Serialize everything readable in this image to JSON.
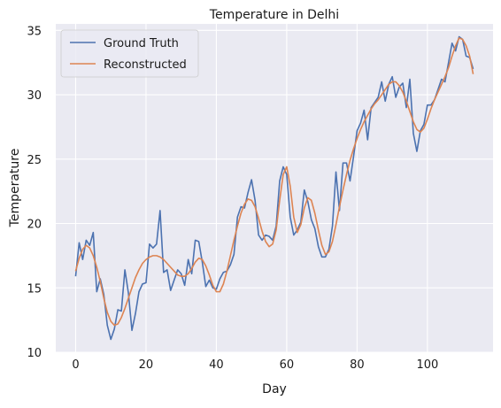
{
  "chart_data": {
    "type": "line",
    "title": "Temperature in Delhi",
    "xlabel": "Day",
    "ylabel": "Temperature",
    "xlim": [
      -5.65,
      118.65
    ],
    "ylim": [
      10,
      35.5
    ],
    "xticks": [
      0,
      20,
      40,
      60,
      80,
      100
    ],
    "yticks": [
      10,
      15,
      20,
      25,
      30,
      35
    ],
    "grid": true,
    "legend_position": "top-left",
    "colors": {
      "ground_truth": "#4c72b0",
      "reconstructed": "#dd8452",
      "background": "#eaeaf2",
      "grid": "#ffffff"
    },
    "series": [
      {
        "name": "Ground Truth",
        "color": "#4c72b0",
        "values": [
          [
            0,
            15.9
          ],
          [
            1,
            18.5
          ],
          [
            2,
            17.2
          ],
          [
            3,
            18.7
          ],
          [
            4,
            18.3
          ],
          [
            5,
            19.3
          ],
          [
            6,
            14.7
          ],
          [
            7,
            15.7
          ],
          [
            8,
            14.5
          ],
          [
            9,
            12.1
          ],
          [
            10,
            11.0
          ],
          [
            11,
            11.8
          ],
          [
            12,
            13.3
          ],
          [
            13,
            13.2
          ],
          [
            14,
            16.4
          ],
          [
            15,
            14.6
          ],
          [
            16,
            11.7
          ],
          [
            17,
            13.0
          ],
          [
            18,
            14.7
          ],
          [
            19,
            15.3
          ],
          [
            20,
            15.4
          ],
          [
            21,
            18.4
          ],
          [
            22,
            18.1
          ],
          [
            23,
            18.4
          ],
          [
            24,
            21.0
          ],
          [
            25,
            16.2
          ],
          [
            26,
            16.4
          ],
          [
            27,
            14.8
          ],
          [
            28,
            15.6
          ],
          [
            29,
            16.4
          ],
          [
            30,
            16.1
          ],
          [
            31,
            15.2
          ],
          [
            32,
            17.2
          ],
          [
            33,
            16.1
          ],
          [
            34,
            18.7
          ],
          [
            35,
            18.6
          ],
          [
            36,
            17.0
          ],
          [
            37,
            15.1
          ],
          [
            38,
            15.6
          ],
          [
            39,
            15.0
          ],
          [
            40,
            14.9
          ],
          [
            41,
            15.7
          ],
          [
            42,
            16.2
          ],
          [
            43,
            16.3
          ],
          [
            44,
            16.8
          ],
          [
            45,
            17.6
          ],
          [
            46,
            20.5
          ],
          [
            47,
            21.3
          ],
          [
            48,
            21.2
          ],
          [
            49,
            22.4
          ],
          [
            50,
            23.4
          ],
          [
            51,
            21.8
          ],
          [
            52,
            19.1
          ],
          [
            53,
            18.7
          ],
          [
            54,
            19.1
          ],
          [
            55,
            19.0
          ],
          [
            56,
            18.7
          ],
          [
            57,
            19.8
          ],
          [
            58,
            23.3
          ],
          [
            59,
            24.4
          ],
          [
            60,
            23.8
          ],
          [
            61,
            20.5
          ],
          [
            62,
            19.1
          ],
          [
            63,
            19.5
          ],
          [
            64,
            20.1
          ],
          [
            65,
            22.6
          ],
          [
            66,
            21.7
          ],
          [
            67,
            20.3
          ],
          [
            68,
            19.6
          ],
          [
            69,
            18.2
          ],
          [
            70,
            17.4
          ],
          [
            71,
            17.4
          ],
          [
            72,
            18.0
          ],
          [
            73,
            19.8
          ],
          [
            74,
            24.0
          ],
          [
            75,
            21.0
          ],
          [
            76,
            24.7
          ],
          [
            77,
            24.7
          ],
          [
            78,
            23.3
          ],
          [
            79,
            25.2
          ],
          [
            80,
            27.2
          ],
          [
            81,
            27.8
          ],
          [
            82,
            28.8
          ],
          [
            83,
            26.5
          ],
          [
            84,
            29.0
          ],
          [
            85,
            29.4
          ],
          [
            86,
            29.8
          ],
          [
            87,
            31.0
          ],
          [
            88,
            29.5
          ],
          [
            89,
            30.8
          ],
          [
            90,
            31.4
          ],
          [
            91,
            29.8
          ],
          [
            92,
            30.6
          ],
          [
            93,
            30.9
          ],
          [
            94,
            29.0
          ],
          [
            95,
            31.2
          ],
          [
            96,
            27.0
          ],
          [
            97,
            25.6
          ],
          [
            98,
            27.2
          ],
          [
            99,
            27.7
          ],
          [
            100,
            29.2
          ],
          [
            101,
            29.2
          ],
          [
            102,
            29.6
          ],
          [
            103,
            30.4
          ],
          [
            104,
            31.2
          ],
          [
            105,
            31.0
          ],
          [
            106,
            32.5
          ],
          [
            107,
            34.0
          ],
          [
            108,
            33.4
          ],
          [
            109,
            34.5
          ],
          [
            110,
            34.3
          ],
          [
            111,
            33.0
          ],
          [
            112,
            32.9
          ],
          [
            113,
            32.0
          ]
        ]
      },
      {
        "name": "Reconstructed",
        "color": "#dd8452",
        "values": [
          [
            0,
            16.3
          ],
          [
            1,
            17.3
          ],
          [
            2,
            18.0
          ],
          [
            3,
            18.3
          ],
          [
            4,
            18.1
          ],
          [
            5,
            17.5
          ],
          [
            6,
            16.6
          ],
          [
            7,
            15.5
          ],
          [
            8,
            14.2
          ],
          [
            9,
            13.1
          ],
          [
            10,
            12.4
          ],
          [
            11,
            12.1
          ],
          [
            12,
            12.2
          ],
          [
            13,
            12.7
          ],
          [
            14,
            13.4
          ],
          [
            15,
            14.2
          ],
          [
            16,
            15.0
          ],
          [
            17,
            15.8
          ],
          [
            18,
            16.4
          ],
          [
            19,
            16.9
          ],
          [
            20,
            17.2
          ],
          [
            21,
            17.4
          ],
          [
            22,
            17.5
          ],
          [
            23,
            17.5
          ],
          [
            24,
            17.4
          ],
          [
            25,
            17.2
          ],
          [
            26,
            16.9
          ],
          [
            27,
            16.6
          ],
          [
            28,
            16.3
          ],
          [
            29,
            16.0
          ],
          [
            30,
            15.9
          ],
          [
            31,
            15.9
          ],
          [
            32,
            16.1
          ],
          [
            33,
            16.5
          ],
          [
            34,
            17.0
          ],
          [
            35,
            17.3
          ],
          [
            36,
            17.2
          ],
          [
            37,
            16.7
          ],
          [
            38,
            16.0
          ],
          [
            39,
            15.2
          ],
          [
            40,
            14.7
          ],
          [
            41,
            14.7
          ],
          [
            42,
            15.3
          ],
          [
            43,
            16.3
          ],
          [
            44,
            17.5
          ],
          [
            45,
            18.7
          ],
          [
            46,
            19.8
          ],
          [
            47,
            20.8
          ],
          [
            48,
            21.5
          ],
          [
            49,
            21.9
          ],
          [
            50,
            21.8
          ],
          [
            51,
            21.3
          ],
          [
            52,
            20.4
          ],
          [
            53,
            19.4
          ],
          [
            54,
            18.6
          ],
          [
            55,
            18.2
          ],
          [
            56,
            18.4
          ],
          [
            57,
            19.5
          ],
          [
            58,
            21.8
          ],
          [
            59,
            23.8
          ],
          [
            60,
            24.4
          ],
          [
            61,
            22.9
          ],
          [
            62,
            20.5
          ],
          [
            63,
            19.3
          ],
          [
            64,
            19.9
          ],
          [
            65,
            21.2
          ],
          [
            66,
            22.0
          ],
          [
            67,
            21.8
          ],
          [
            68,
            20.8
          ],
          [
            69,
            19.5
          ],
          [
            70,
            18.3
          ],
          [
            71,
            17.6
          ],
          [
            72,
            17.8
          ],
          [
            73,
            18.6
          ],
          [
            74,
            19.9
          ],
          [
            75,
            21.3
          ],
          [
            76,
            22.6
          ],
          [
            77,
            23.8
          ],
          [
            78,
            24.9
          ],
          [
            79,
            25.8
          ],
          [
            80,
            26.6
          ],
          [
            81,
            27.3
          ],
          [
            82,
            27.9
          ],
          [
            83,
            28.4
          ],
          [
            84,
            28.9
          ],
          [
            85,
            29.3
          ],
          [
            86,
            29.6
          ],
          [
            87,
            30.0
          ],
          [
            88,
            30.4
          ],
          [
            89,
            30.8
          ],
          [
            90,
            31.0
          ],
          [
            91,
            31.0
          ],
          [
            92,
            30.7
          ],
          [
            93,
            30.2
          ],
          [
            94,
            29.5
          ],
          [
            95,
            28.7
          ],
          [
            96,
            27.9
          ],
          [
            97,
            27.3
          ],
          [
            98,
            27.1
          ],
          [
            99,
            27.4
          ],
          [
            100,
            28.1
          ],
          [
            101,
            28.9
          ],
          [
            102,
            29.6
          ],
          [
            103,
            30.2
          ],
          [
            104,
            30.8
          ],
          [
            105,
            31.4
          ],
          [
            106,
            32.1
          ],
          [
            107,
            33.0
          ],
          [
            108,
            33.8
          ],
          [
            109,
            34.4
          ],
          [
            110,
            34.3
          ],
          [
            111,
            33.8
          ],
          [
            112,
            33.0
          ],
          [
            113,
            31.6
          ]
        ]
      }
    ]
  }
}
